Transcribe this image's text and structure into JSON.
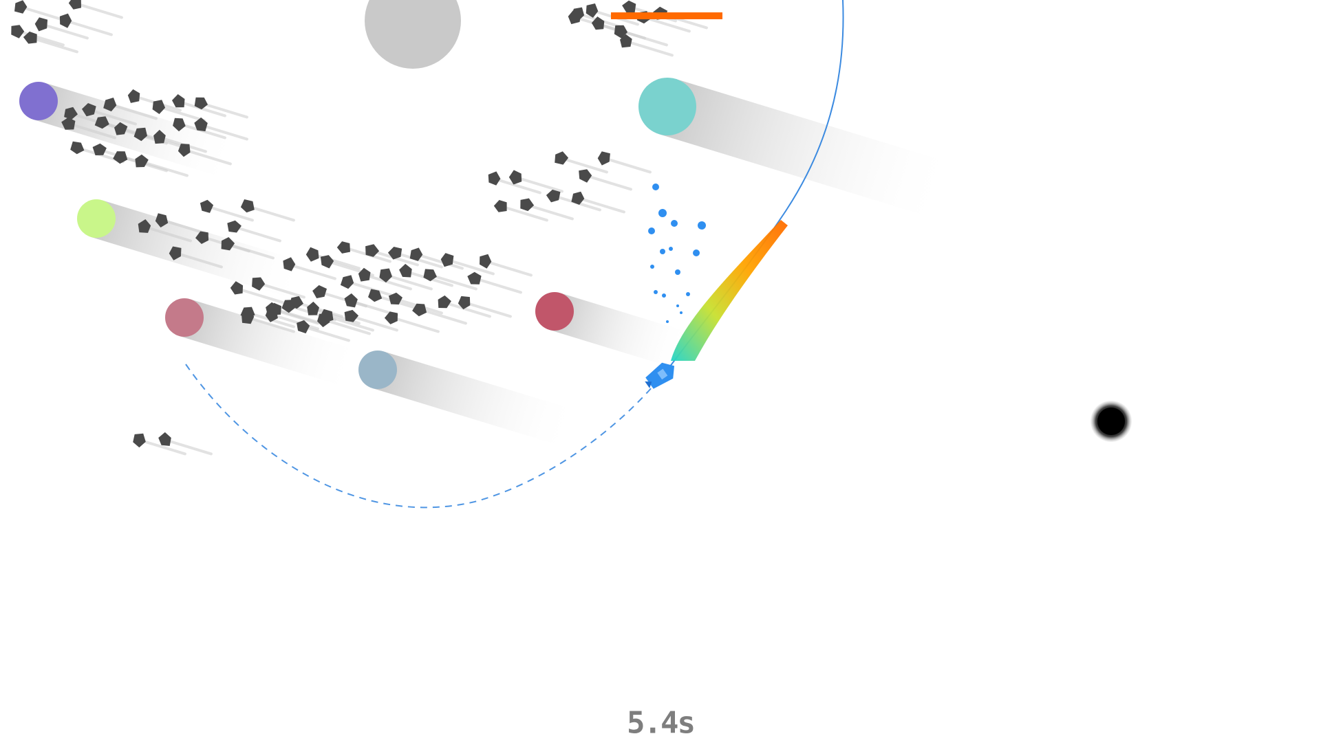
{
  "hud": {
    "timer_text": "5.4s",
    "fuel_level": 1.0,
    "fuel_color": "#ff6a00"
  },
  "colors": {
    "background": "#ffffff",
    "asteroid": "#4a4a4a",
    "trail": "#d2d2d2",
    "ship": "#2f8ff0",
    "orbit_line": "#3b8ae0",
    "planet_grey": "#c8c8c8",
    "black_hole": "#000000"
  },
  "planets": [
    {
      "name": "grey-planet",
      "color": "#c9c9c9"
    },
    {
      "name": "purple-planet",
      "color": "#8070d0"
    },
    {
      "name": "teal-planet",
      "color": "#7ad2ce"
    },
    {
      "name": "lime-planet",
      "color": "#c9f68a"
    },
    {
      "name": "mauve-planet",
      "color": "#c47a8a"
    },
    {
      "name": "red-planet",
      "color": "#c1566a"
    },
    {
      "name": "steel-planet",
      "color": "#9ab6c8"
    }
  ],
  "icons": {
    "ship": "rocket-ship-icon",
    "black_hole": "black-hole-icon",
    "asteroid": "asteroid-icon"
  }
}
